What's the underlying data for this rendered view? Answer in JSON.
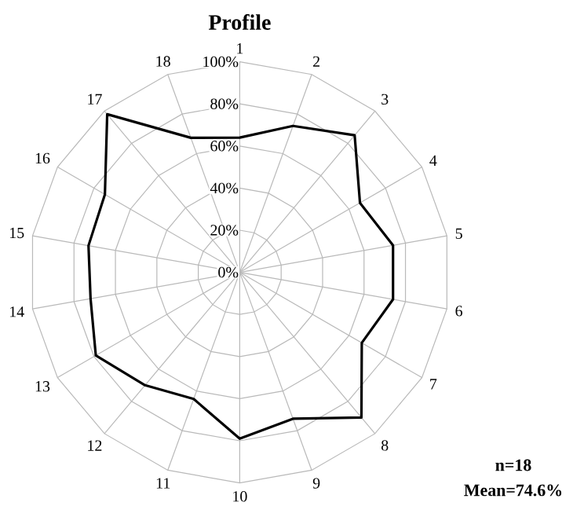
{
  "chart_data": {
    "type": "radar",
    "title": "Profile",
    "categories": [
      "1",
      "2",
      "3",
      "4",
      "5",
      "6",
      "7",
      "8",
      "9",
      "10",
      "11",
      "12",
      "13",
      "14",
      "15",
      "16",
      "17",
      "18"
    ],
    "series": [
      {
        "color": "#000000",
        "values": [
          64,
          74,
          85,
          66,
          74,
          74,
          67,
          90,
          74,
          79,
          64,
          70,
          79,
          72,
          73,
          74,
          98,
          68
        ]
      }
    ],
    "ylim": [
      0,
      100
    ],
    "yticks": [
      {
        "value": 0,
        "label": "0%"
      },
      {
        "value": 20,
        "label": "20%"
      },
      {
        "value": 40,
        "label": "40%"
      },
      {
        "value": 60,
        "label": "60%"
      },
      {
        "value": 80,
        "label": "80%"
      },
      {
        "value": 100,
        "label": "100%"
      }
    ],
    "grid": true,
    "annotations": [
      "n=18",
      "Mean=74.6%"
    ]
  }
}
